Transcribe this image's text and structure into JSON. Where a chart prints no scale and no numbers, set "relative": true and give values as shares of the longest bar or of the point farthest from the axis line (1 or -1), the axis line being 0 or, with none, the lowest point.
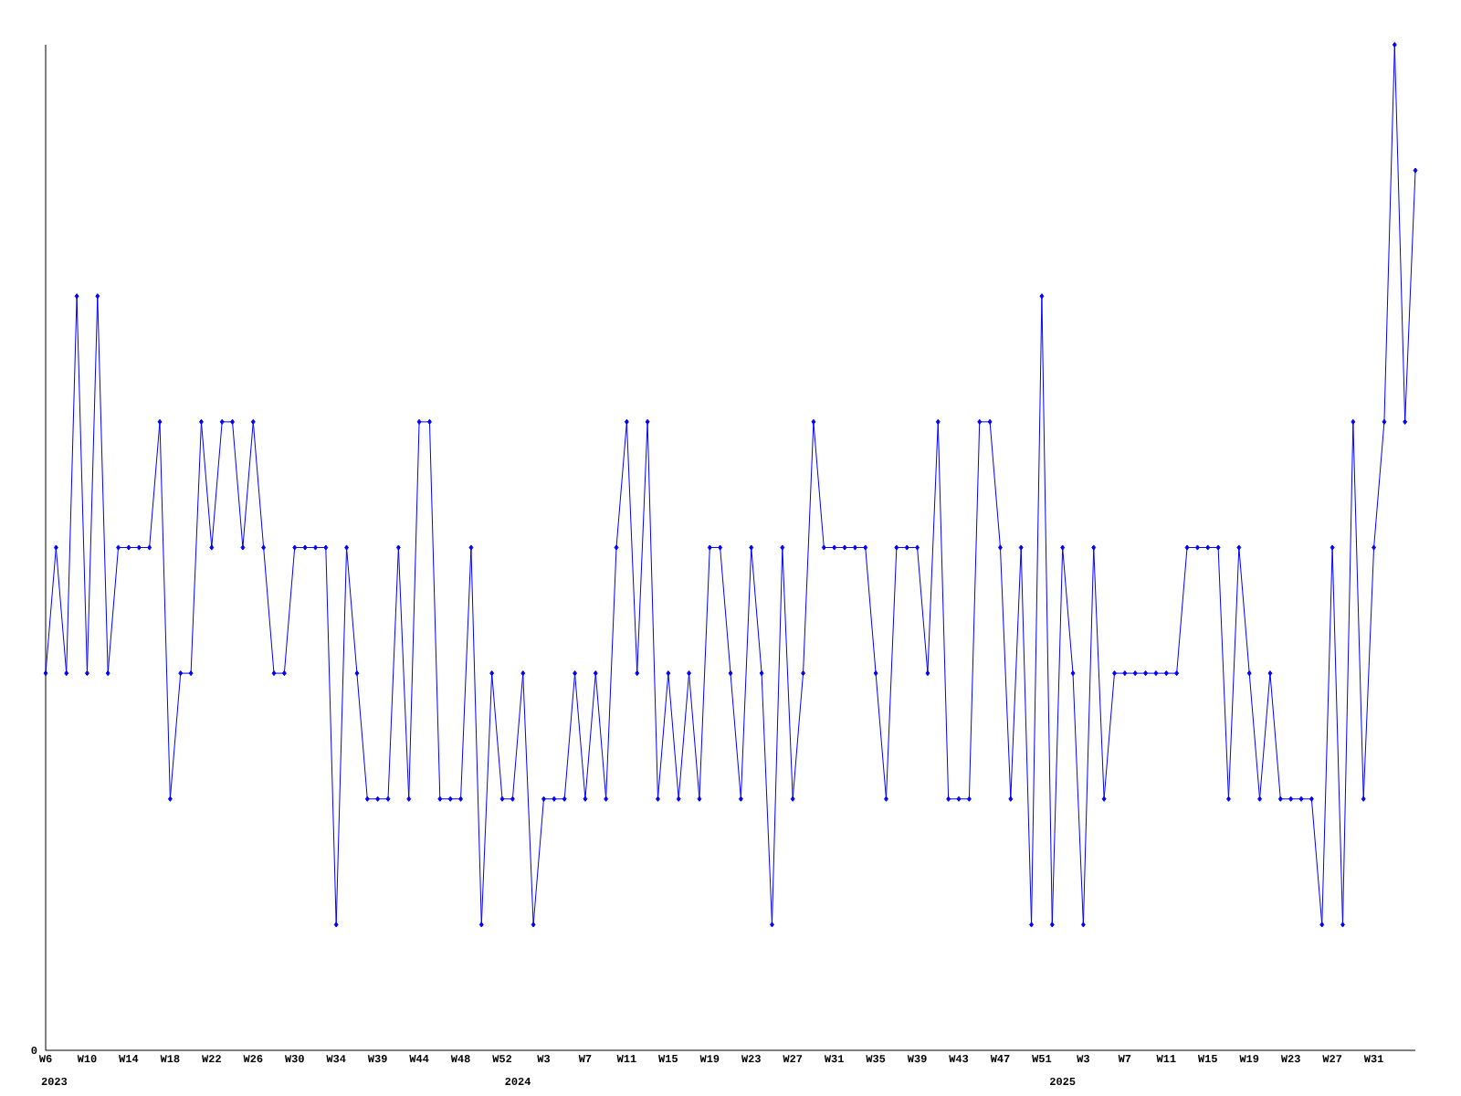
{
  "chart_data": {
    "type": "line",
    "relative": true,
    "color": "#0000ff",
    "marker": "diamond",
    "line_style": "solid",
    "categories": [
      "W6",
      null,
      null,
      null,
      "W10",
      null,
      null,
      null,
      "W14",
      null,
      null,
      null,
      "W18",
      null,
      null,
      null,
      "W22",
      null,
      null,
      null,
      "W26",
      null,
      null,
      null,
      "W30",
      null,
      null,
      null,
      "W34",
      null,
      null,
      null,
      "W39",
      null,
      null,
      null,
      "W44",
      null,
      null,
      null,
      "W48",
      null,
      null,
      null,
      "W52",
      null,
      null,
      null,
      "W3",
      null,
      null,
      null,
      "W7",
      null,
      null,
      null,
      "W11",
      null,
      null,
      null,
      "W15",
      null,
      null,
      null,
      "W19",
      null,
      null,
      null,
      "W23",
      null,
      null,
      null,
      "W27",
      null,
      null,
      null,
      "W31",
      null,
      null,
      null,
      "W35",
      null,
      null,
      null,
      "W39",
      null,
      null,
      null,
      "W43",
      null,
      null,
      null,
      "W47",
      null,
      null,
      null,
      "W51",
      null,
      null,
      null,
      "W3",
      null,
      null,
      null,
      "W7",
      null,
      null,
      null,
      "W11",
      null,
      null,
      null,
      "W15",
      null,
      null,
      null,
      "W19",
      null,
      null,
      null,
      "W23",
      null,
      null,
      null,
      "W27",
      null,
      null,
      null,
      "W31",
      null,
      null,
      null,
      null
    ],
    "values": [
      0.375,
      0.5,
      0.375,
      0.75,
      0.375,
      0.75,
      0.375,
      0.5,
      0.5,
      0.5,
      0.5,
      0.625,
      0.25,
      0.375,
      0.375,
      0.625,
      0.5,
      0.625,
      0.625,
      0.5,
      0.625,
      0.5,
      0.375,
      0.375,
      0.5,
      0.5,
      0.5,
      0.5,
      0.125,
      0.5,
      0.375,
      0.25,
      0.25,
      0.25,
      0.5,
      0.25,
      0.625,
      0.625,
      0.25,
      0.25,
      0.25,
      0.5,
      0.125,
      0.375,
      0.25,
      0.25,
      0.375,
      0.125,
      0.25,
      0.25,
      0.25,
      0.375,
      0.25,
      0.375,
      0.25,
      0.5,
      0.625,
      0.375,
      0.625,
      0.25,
      0.375,
      0.25,
      0.375,
      0.25,
      0.5,
      0.5,
      0.375,
      0.25,
      0.5,
      0.375,
      0.125,
      0.5,
      0.25,
      0.375,
      0.625,
      0.5,
      0.5,
      0.5,
      0.5,
      0.5,
      0.375,
      0.25,
      0.5,
      0.5,
      0.5,
      0.375,
      0.625,
      0.25,
      0.25,
      0.25,
      0.625,
      0.625,
      0.5,
      0.25,
      0.5,
      0.125,
      0.75,
      0.125,
      0.5,
      0.375,
      0.125,
      0.5,
      0.25,
      0.375,
      0.375,
      0.375,
      0.375,
      0.375,
      0.375,
      0.375,
      0.5,
      0.5,
      0.5,
      0.5,
      0.25,
      0.5,
      0.375,
      0.25,
      0.375,
      0.25,
      0.25,
      0.25,
      0.25,
      0.125,
      0.5,
      0.125,
      0.625,
      0.25,
      0.5,
      0.625,
      1,
      0.625,
      0.875
    ],
    "annotations": [
      "0",
      "2023",
      "2024",
      "2025"
    ]
  }
}
